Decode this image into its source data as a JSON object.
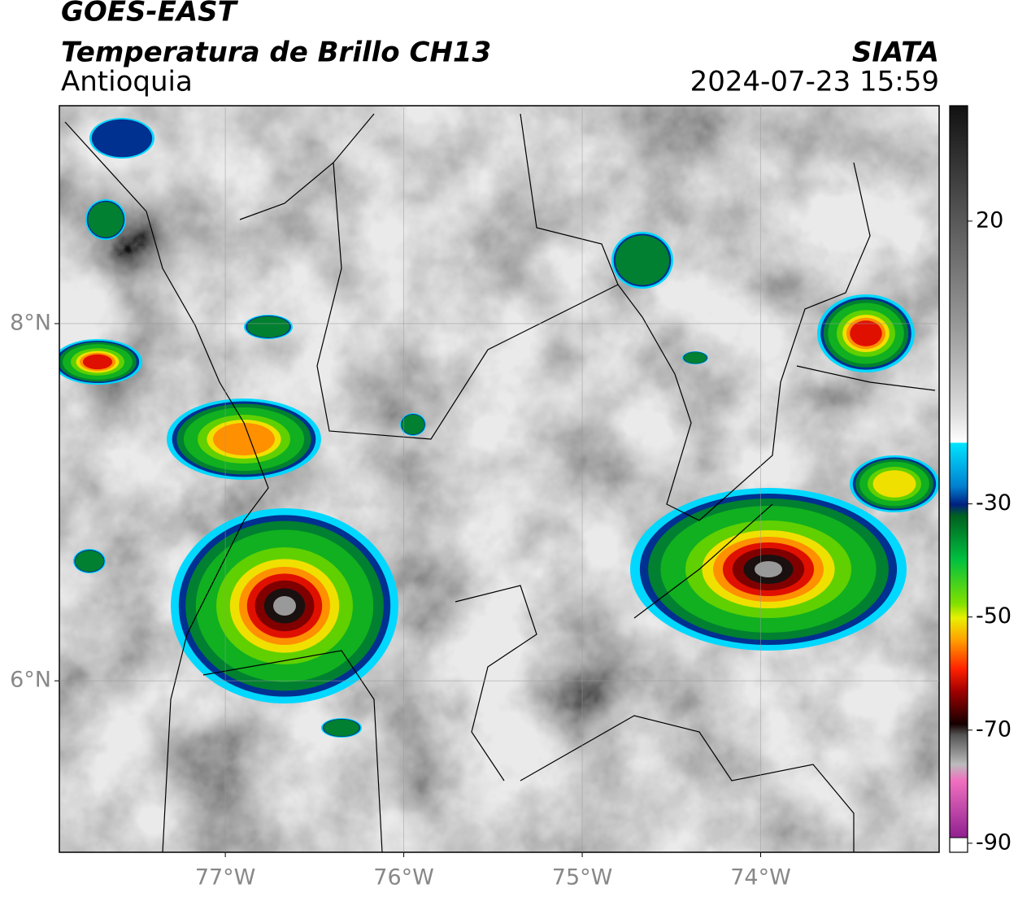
{
  "header": {
    "title": "GOES-EAST",
    "subtitle": "Temperatura de Brillo CH13",
    "region": "Antioquia",
    "source": "SIATA",
    "timestamp": "2024-07-23 15:59"
  },
  "map": {
    "xlim": [
      -77.93,
      -73.0
    ],
    "ylim": [
      5.04,
      9.22
    ],
    "xticks": [
      {
        "value": -77,
        "label": "77°W"
      },
      {
        "value": -76,
        "label": "76°W"
      },
      {
        "value": -75,
        "label": "75°W"
      },
      {
        "value": -74,
        "label": "74°W"
      }
    ],
    "yticks": [
      {
        "value": 8,
        "label": "8°N"
      },
      {
        "value": 6,
        "label": "6°N"
      }
    ],
    "grid": true
  },
  "colorbar": {
    "lim": [
      -91.6,
      40.4
    ],
    "ticks": [
      20,
      -30,
      -50,
      -70,
      -90
    ]
  }
}
